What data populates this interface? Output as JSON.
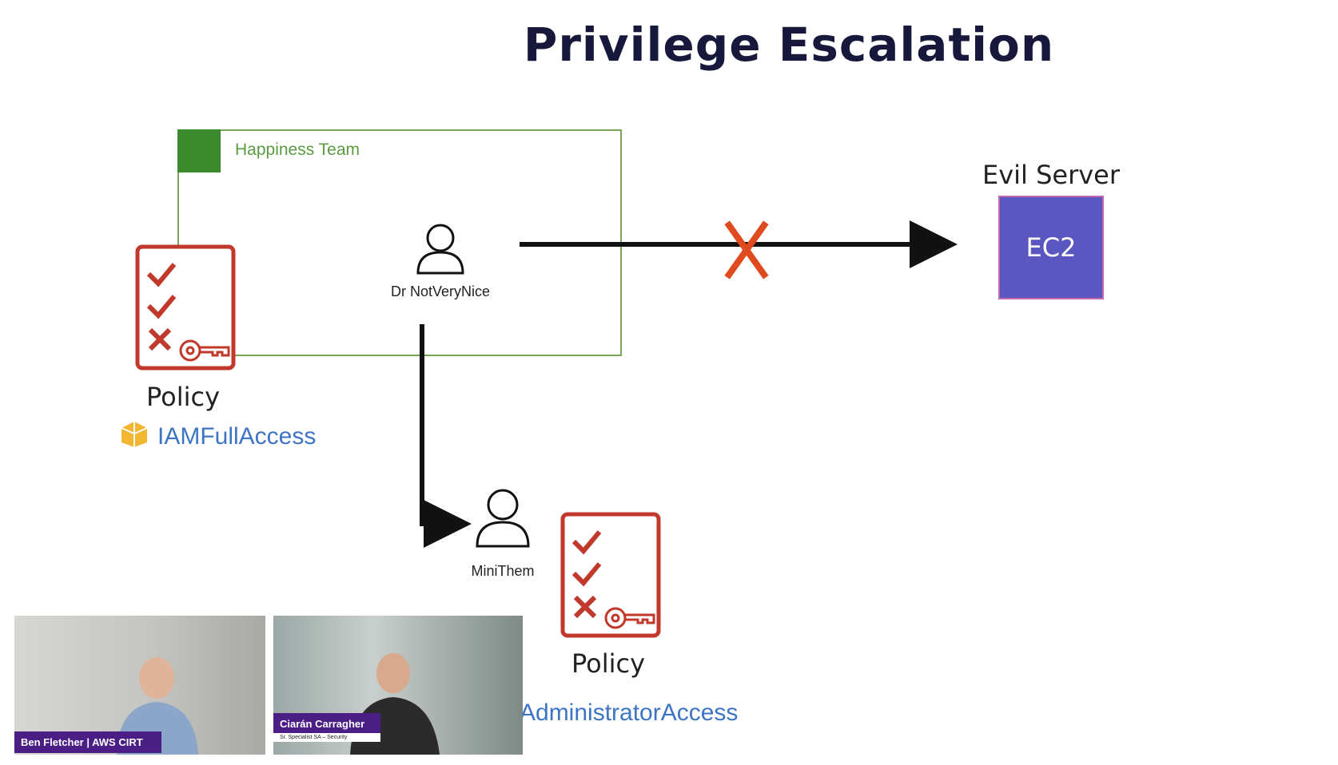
{
  "slide": {
    "title": "Privilege Escalation"
  },
  "group": {
    "label": "Happiness Team"
  },
  "users": {
    "attacker": {
      "label": "Dr NotVeryNice"
    },
    "created": {
      "label": "MiniThem"
    }
  },
  "policies": {
    "attacker_policy": {
      "label": "Policy",
      "name": "IAMFullAccess"
    },
    "created_policy": {
      "label": "Policy",
      "name": "AdministratorAccess"
    }
  },
  "target": {
    "caption": "Evil Server",
    "label": "EC2"
  },
  "participants": [
    {
      "name": "Ben Fletcher | AWS CIRT"
    },
    {
      "name": "Ciarán Carragher",
      "subtitle": "Sr. Specialist SA – Security"
    }
  ],
  "colors": {
    "title": "#17183b",
    "policy_red": "#c0392b",
    "blocked_x": "#e04a1f",
    "ec2_fill": "#5b57c0",
    "ec2_border": "#c46bb0",
    "group_green": "#3c8a2e",
    "policy_blue": "#3e74c4",
    "nameplate": "#4b1e86"
  },
  "icons": [
    "group-icon",
    "user-icon",
    "policy-document-icon",
    "key-icon",
    "aws-package-icon",
    "blocked-x-icon",
    "arrow-icon"
  ]
}
